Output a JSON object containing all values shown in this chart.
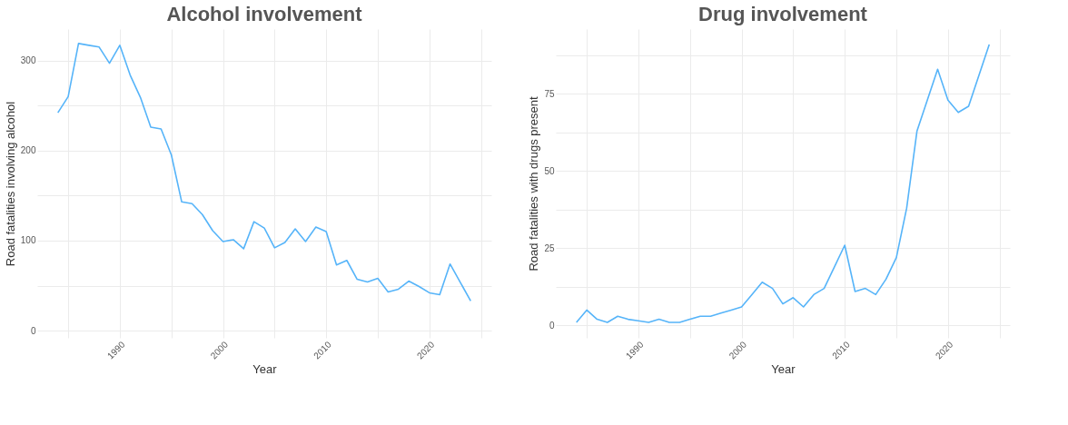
{
  "chart_data": [
    {
      "type": "line",
      "title": "Alcohol involvement",
      "xlabel": "Year",
      "ylabel": "Road fatalities involving alcohol",
      "x": [
        1984,
        1985,
        1986,
        1987,
        1988,
        1989,
        1990,
        1991,
        1992,
        1993,
        1994,
        1995,
        1996,
        1997,
        1998,
        1999,
        2000,
        2001,
        2002,
        2003,
        2004,
        2005,
        2006,
        2007,
        2008,
        2009,
        2010,
        2011,
        2012,
        2013,
        2014,
        2015,
        2016,
        2017,
        2018,
        2019,
        2020,
        2021,
        2022,
        2024
      ],
      "series": [
        {
          "color": "#56b4f9",
          "values": [
            242,
            260,
            319,
            317,
            315,
            297,
            317,
            284,
            259,
            226,
            224,
            195,
            143,
            141,
            129,
            111,
            99,
            101,
            91,
            121,
            114,
            92,
            98,
            113,
            99,
            115,
            110,
            73,
            78,
            57,
            54,
            58,
            43,
            46,
            55,
            49,
            42,
            40,
            74,
            33
          ]
        }
      ],
      "xlim": [
        1982,
        2026
      ],
      "ylim": [
        -8,
        335
      ],
      "xticks": [
        {
          "value": 1985,
          "label": null
        },
        1990,
        {
          "value": 1995,
          "label": null
        },
        2000,
        {
          "value": 2005,
          "label": null
        },
        2010,
        {
          "value": 2015,
          "label": null
        },
        2020,
        {
          "value": 2025,
          "label": null
        }
      ],
      "yticks": [
        0,
        {
          "value": 50,
          "label": null
        },
        100,
        {
          "value": 150,
          "label": null
        },
        200,
        {
          "value": 250,
          "label": null
        },
        300
      ],
      "grid": true
    },
    {
      "type": "line",
      "title": "Drug involvement",
      "xlabel": "Year",
      "ylabel": "Road fatalities with drugs present",
      "x": [
        1984,
        1985,
        1986,
        1987,
        1988,
        1989,
        1990,
        1991,
        1992,
        1993,
        1994,
        1995,
        1996,
        1997,
        1998,
        1999,
        2000,
        2001,
        2002,
        2003,
        2004,
        2005,
        2006,
        2007,
        2008,
        2009,
        2010,
        2011,
        2012,
        2013,
        2014,
        2015,
        2016,
        2017,
        2018,
        2019,
        2020,
        2021,
        2022,
        2024
      ],
      "series": [
        {
          "color": "#56b4f9",
          "values": [
            1,
            5,
            2,
            1,
            3,
            2,
            1.5,
            1,
            2,
            1,
            1,
            2,
            3,
            3,
            4,
            5,
            6,
            10,
            14,
            12,
            7,
            9,
            6,
            10,
            12,
            19,
            26,
            11,
            12,
            10,
            15,
            22,
            38,
            63,
            73,
            83,
            73,
            69,
            71,
            91
          ]
        }
      ],
      "xlim": [
        1982,
        2026
      ],
      "ylim": [
        -4,
        96
      ],
      "xticks": [
        {
          "value": 1985,
          "label": null
        },
        1990,
        {
          "value": 1995,
          "label": null
        },
        2000,
        {
          "value": 2005,
          "label": null
        },
        2010,
        {
          "value": 2015,
          "label": null
        },
        2020,
        {
          "value": 2025,
          "label": null
        }
      ],
      "yticks": [
        0,
        {
          "value": 12.5,
          "label": null
        },
        25,
        {
          "value": 37.5,
          "label": null
        },
        50,
        {
          "value": 62.5,
          "label": null
        },
        75,
        {
          "value": 87.5,
          "label": null
        }
      ],
      "grid": true
    }
  ]
}
